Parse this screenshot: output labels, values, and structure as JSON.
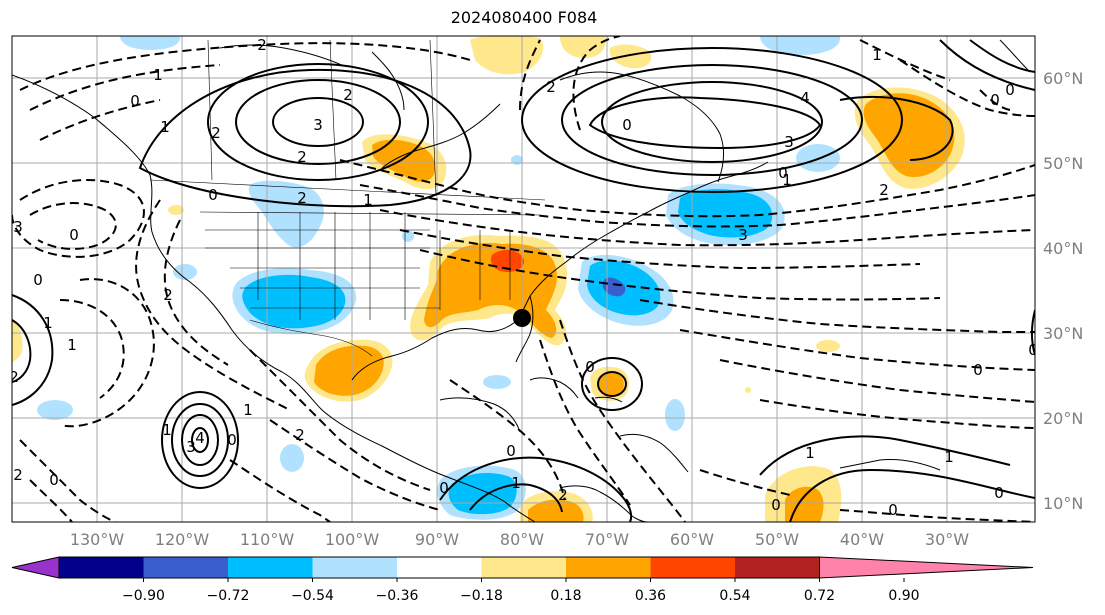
{
  "title": "2024080400 F084",
  "lat_labels": [
    "60°N",
    "50°N",
    "40°N",
    "30°N",
    "20°N",
    "10°N"
  ],
  "lon_labels": [
    "130°W",
    "120°W",
    "110°W",
    "100°W",
    "90°W",
    "80°W",
    "70°W",
    "60°W",
    "50°W",
    "40°W",
    "30°W"
  ],
  "colorbar": {
    "colors": [
      "#9932cc",
      "#00008b",
      "#3a5fcd",
      "#00bfff",
      "#b0e2ff",
      "#ffffff",
      "#ffe78c",
      "#ffa500",
      "#ff4500",
      "#b22222",
      "#ff82ab"
    ],
    "tick_labels": [
      "−0.90",
      "−0.72",
      "−0.54",
      "−0.36",
      "−0.18",
      "0.18",
      "0.36",
      "0.54",
      "0.72",
      "0.90"
    ]
  },
  "contour_labels": [
    "2",
    "1",
    "0",
    "2",
    "3",
    "1",
    "2",
    "0",
    "1",
    "2",
    "3",
    "4",
    "3",
    "2",
    "1",
    "0",
    "0",
    "2",
    "1",
    "0",
    "0",
    "2",
    "3",
    "0",
    "2",
    "0",
    "1",
    "1",
    "2",
    "2",
    "0",
    "1",
    "4",
    "3",
    "1",
    "1",
    "0",
    "0",
    "0",
    "0",
    "1",
    "0",
    "0",
    "1",
    "2",
    "0",
    "0",
    "2",
    "0"
  ],
  "marker": "black-dot"
}
